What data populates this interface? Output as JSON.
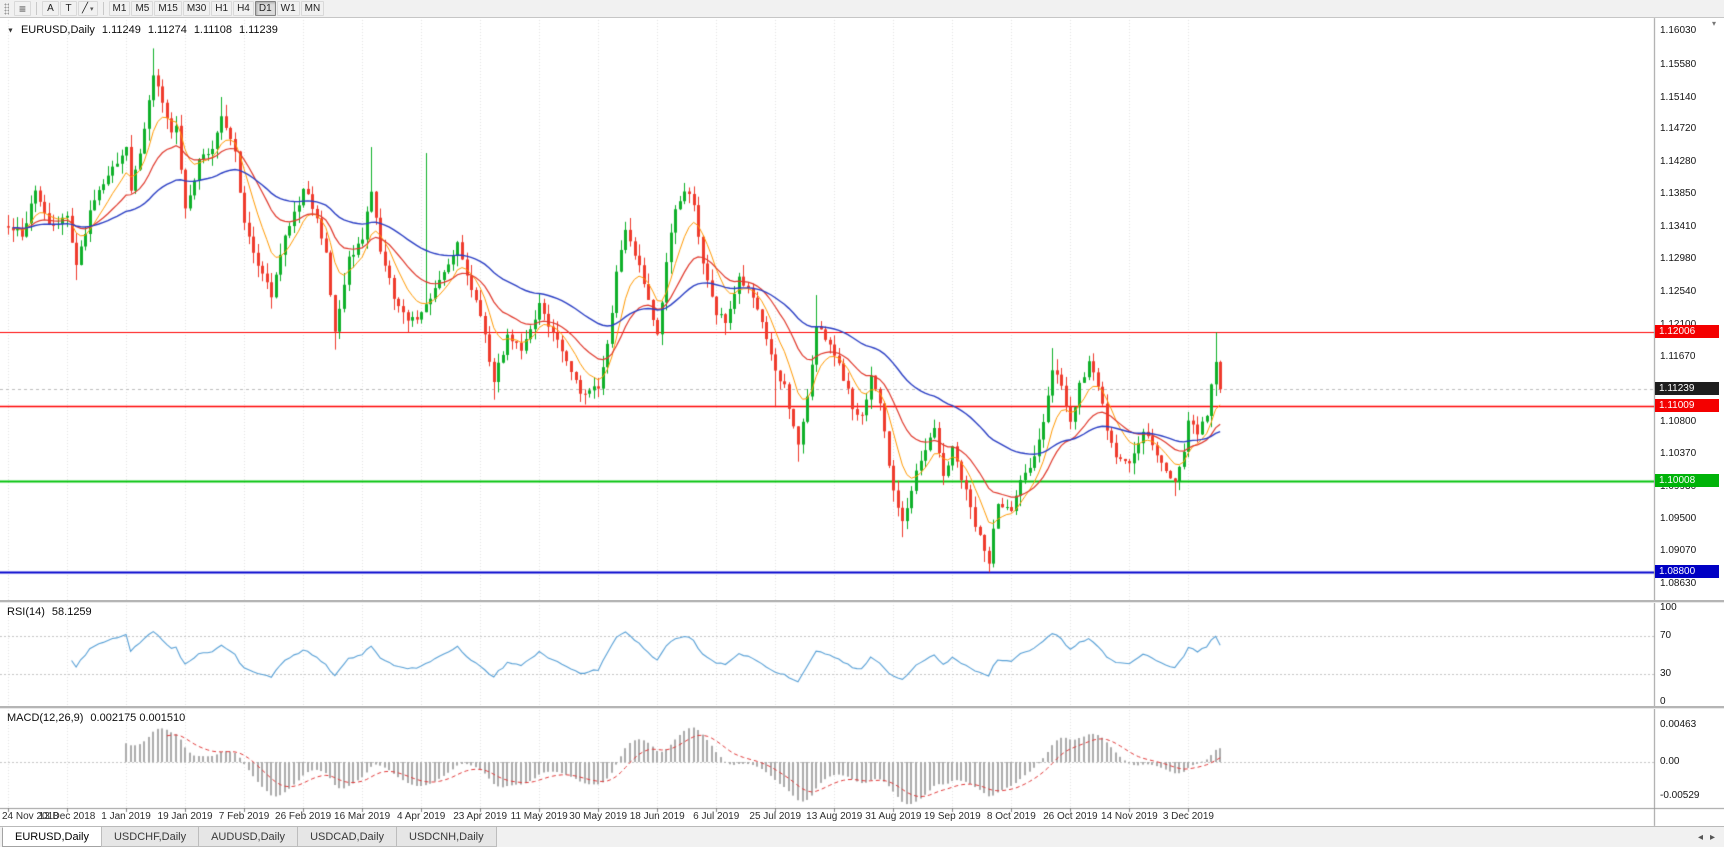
{
  "toolbar": {
    "cursor_label": "A",
    "text_label": "T",
    "draw_glyph": "╱",
    "caret": "▾",
    "charts_list_glyph": "≡",
    "timeframes": [
      "M1",
      "M5",
      "M15",
      "M30",
      "H1",
      "H4",
      "D1",
      "W1",
      "MN"
    ],
    "active_timeframe": "D1"
  },
  "tab_bar": {
    "tabs": [
      "EURUSD,Daily",
      "USDCHF,Daily",
      "AUDUSD,Daily",
      "USDCAD,Daily",
      "USDCNH,Daily"
    ],
    "active": "EURUSD,Daily",
    "scroll_left": "◂",
    "scroll_right": "▸"
  },
  "chart_data": {
    "type": "candlestick",
    "symbol": "EURUSD",
    "timeframe": "Daily",
    "title": {
      "arrow": "▼",
      "symbol": "EURUSD,Daily",
      "open": "1.11249",
      "high": "1.11274",
      "low": "1.11108",
      "close": "1.11239"
    },
    "scale_arrow": "▾",
    "bars": 268,
    "last_close": 1.11239,
    "up_color": "#0fb02a",
    "down_color": "#ef3b2d",
    "keypoints": [
      [
        0,
        1.134
      ],
      [
        3,
        1.133
      ],
      [
        6,
        1.139
      ],
      [
        9,
        1.134
      ],
      [
        13,
        1.136
      ],
      [
        15,
        1.129
      ],
      [
        18,
        1.136
      ],
      [
        21,
        1.14
      ],
      [
        24,
        1.143
      ],
      [
        26,
        1.145
      ],
      [
        27,
        1.139
      ],
      [
        29,
        1.144
      ],
      [
        32,
        1.1545
      ],
      [
        36,
        1.147
      ],
      [
        37,
        1.1475
      ],
      [
        39,
        1.1366
      ],
      [
        42,
        1.143
      ],
      [
        45,
        1.144
      ],
      [
        47,
        1.149
      ],
      [
        50,
        1.144
      ],
      [
        52,
        1.1344
      ],
      [
        55,
        1.129
      ],
      [
        58,
        1.125
      ],
      [
        61,
        1.133
      ],
      [
        65,
        1.139
      ],
      [
        67,
        1.137
      ],
      [
        70,
        1.131
      ],
      [
        72,
        1.12
      ],
      [
        75,
        1.13
      ],
      [
        78,
        1.1325
      ],
      [
        80,
        1.139
      ],
      [
        82,
        1.131
      ],
      [
        85,
        1.125
      ],
      [
        88,
        1.122
      ],
      [
        91,
        1.1224
      ],
      [
        94,
        1.126
      ],
      [
        97,
        1.129
      ],
      [
        99,
        1.132
      ],
      [
        102,
        1.126
      ],
      [
        104,
        1.1224
      ],
      [
        107,
        1.1135
      ],
      [
        110,
        1.1195
      ],
      [
        113,
        1.118
      ],
      [
        117,
        1.1234
      ],
      [
        120,
        1.12
      ],
      [
        123,
        1.116
      ],
      [
        126,
        1.112
      ],
      [
        130,
        1.113
      ],
      [
        132,
        1.118
      ],
      [
        134,
        1.128
      ],
      [
        136,
        1.1335
      ],
      [
        139,
        1.129
      ],
      [
        141,
        1.124
      ],
      [
        143,
        1.1195
      ],
      [
        145,
        1.129
      ],
      [
        147,
        1.137
      ],
      [
        149,
        1.139
      ],
      [
        151,
        1.137
      ],
      [
        153,
        1.129
      ],
      [
        156,
        1.1228
      ],
      [
        158,
        1.1215
      ],
      [
        161,
        1.127
      ],
      [
        164,
        1.125
      ],
      [
        166,
        1.1215
      ],
      [
        169,
        1.1146
      ],
      [
        171,
        1.113
      ],
      [
        174,
        1.1045
      ],
      [
        176,
        1.111
      ],
      [
        178,
        1.121
      ],
      [
        180,
        1.119
      ],
      [
        182,
        1.117
      ],
      [
        184,
        1.114
      ],
      [
        186,
        1.11
      ],
      [
        188,
        1.109
      ],
      [
        190,
        1.114
      ],
      [
        192,
        1.11
      ],
      [
        195,
        1.099
      ],
      [
        197,
        1.0945
      ],
      [
        199,
        1.099
      ],
      [
        201,
        1.103
      ],
      [
        204,
        1.107
      ],
      [
        206,
        1.1005
      ],
      [
        208,
        1.1043
      ],
      [
        211,
        1.099
      ],
      [
        213,
        1.094
      ],
      [
        216,
        1.0895
      ],
      [
        218,
        1.097
      ],
      [
        221,
        1.0959
      ],
      [
        223,
        1.1
      ],
      [
        226,
        1.1035
      ],
      [
        228,
        1.1075
      ],
      [
        230,
        1.115
      ],
      [
        232,
        1.113
      ],
      [
        234,
        1.108
      ],
      [
        236,
        1.113
      ],
      [
        238,
        1.116
      ],
      [
        240,
        1.113
      ],
      [
        242,
        1.107
      ],
      [
        244,
        1.103
      ],
      [
        247,
        1.1021
      ],
      [
        250,
        1.107
      ],
      [
        253,
        1.104
      ],
      [
        255,
        1.1015
      ],
      [
        257,
        1.0995
      ],
      [
        259,
        1.1045
      ],
      [
        260,
        1.1081
      ],
      [
        262,
        1.1065
      ],
      [
        264,
        1.109
      ],
      [
        265,
        1.113
      ],
      [
        266,
        1.116
      ],
      [
        267,
        1.11239
      ]
    ],
    "spikes": [
      {
        "i": 15,
        "l": 1.127
      },
      {
        "i": 32,
        "h": 1.158
      },
      {
        "i": 47,
        "h": 1.1515
      },
      {
        "i": 58,
        "l": 1.1234
      },
      {
        "i": 72,
        "l": 1.1177
      },
      {
        "i": 80,
        "h": 1.1448
      },
      {
        "i": 92,
        "h": 1.144
      },
      {
        "i": 107,
        "l": 1.111
      },
      {
        "i": 126,
        "l": 1.1107
      },
      {
        "i": 136,
        "h": 1.1348
      },
      {
        "i": 149,
        "h": 1.14
      },
      {
        "i": 169,
        "l": 1.1101
      },
      {
        "i": 174,
        "l": 1.1027
      },
      {
        "i": 178,
        "h": 1.125
      },
      {
        "i": 197,
        "l": 1.0926
      },
      {
        "i": 216,
        "l": 1.0879
      },
      {
        "i": 230,
        "h": 1.1179
      },
      {
        "i": 257,
        "l": 1.0981
      },
      {
        "i": 266,
        "h": 1.12
      }
    ],
    "moving_averages": [
      {
        "period": 8,
        "color": "#ff9900",
        "width": 1
      },
      {
        "period": 20,
        "color": "#e0392c",
        "width": 1.2
      },
      {
        "period": 50,
        "color": "#2b3fc4",
        "width": 1.4
      }
    ],
    "price_axis": {
      "min": 1.085,
      "max": 1.161,
      "ticks": [
        "1.16030",
        "1.15580",
        "1.15140",
        "1.14720",
        "1.14280",
        "1.13850",
        "1.13410",
        "1.12980",
        "1.12540",
        "1.12100",
        "1.11670",
        "1.10800",
        "1.10370",
        "1.09930",
        "1.09500",
        "1.09070",
        "1.08630"
      ]
    },
    "levels": [
      {
        "label": "1.12006",
        "price": 1.12006,
        "line_color": "#ff0000",
        "box_color": "#f40000",
        "width": 1.2,
        "style": "solid"
      },
      {
        "label": "1.11239",
        "price": 1.11239,
        "line_color": "#bcbcbc",
        "box_color": "#1e1e1e",
        "width": 1,
        "style": "dot"
      },
      {
        "label": "1.11009",
        "price": 1.11009,
        "line_color": "#ff0000",
        "box_color": "#f40000",
        "width": 1.6,
        "style": "solid"
      },
      {
        "label": "1.10008",
        "price": 1.10008,
        "line_color": "#00c30a",
        "box_color": "#00b309",
        "width": 2,
        "style": "solid"
      },
      {
        "label": "1.08800",
        "price": 1.088,
        "line_color": "#0000cd",
        "box_color": "#0000c4",
        "width": 2,
        "style": "solid"
      }
    ],
    "indicators": {
      "rsi": {
        "label": "RSI(14)",
        "value": "58.1259",
        "period": 14,
        "color": "#58a0d6",
        "axis_labels": [
          "100",
          "70",
          "30",
          "0"
        ],
        "axis_values": [
          100,
          70,
          30,
          0
        ],
        "dotted_levels": [
          70,
          30
        ]
      },
      "macd": {
        "label": "MACD(12,26,9)",
        "value": "0.002175 0.001510",
        "fast": 12,
        "slow": 26,
        "signal": 9,
        "histogram_color": "#ababab",
        "signal_color": "#e03a3a",
        "axis_labels": [
          "0.00463",
          "0.00",
          "-0.00529"
        ],
        "axis_values": [
          0.00463,
          0,
          -0.00529
        ]
      }
    },
    "dates": [
      "24 Nov 2018",
      "13 Dec 2018",
      "1 Jan 2019",
      "19 Jan 2019",
      "7 Feb 2019",
      "26 Feb 2019",
      "16 Mar 2019",
      "4 Apr 2019",
      "23 Apr 2019",
      "11 May 2019",
      "30 May 2019",
      "18 Jun 2019",
      "6 Jul 2019",
      "25 Jul 2019",
      "13 Aug 2019",
      "31 Aug 2019",
      "19 Sep 2019",
      "8 Oct 2019",
      "26 Oct 2019",
      "14 Nov 2019",
      "3 Dec 2019"
    ]
  }
}
